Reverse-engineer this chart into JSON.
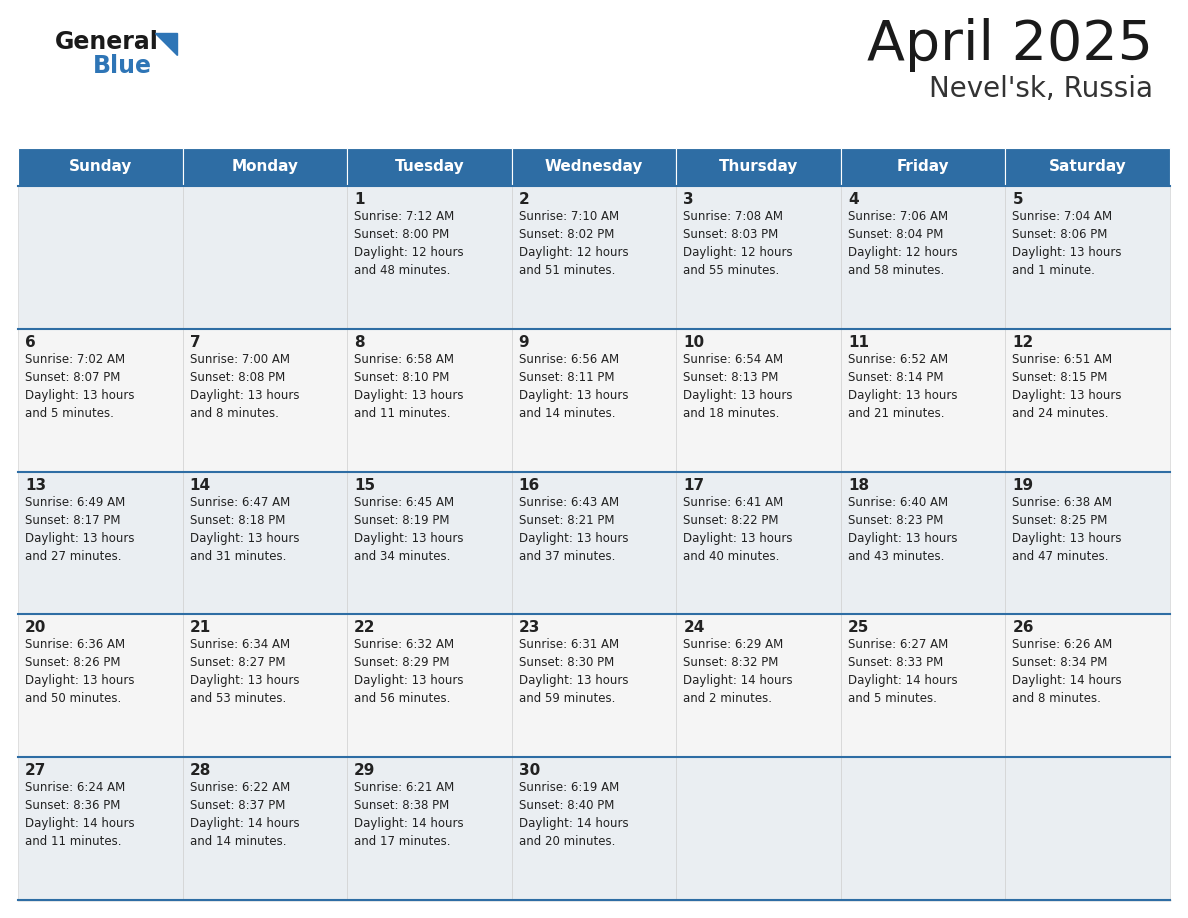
{
  "title": "April 2025",
  "subtitle": "Nevel'sk, Russia",
  "days_of_week": [
    "Sunday",
    "Monday",
    "Tuesday",
    "Wednesday",
    "Thursday",
    "Friday",
    "Saturday"
  ],
  "header_bg": "#2E6DA4",
  "header_text": "#FFFFFF",
  "cell_bg": "#F0F4F8",
  "cell_bg_alt": "#FFFFFF",
  "row_sep_color": "#2E6DA4",
  "text_color": "#222222",
  "border_color": "#AAAAAA",
  "calendar": [
    [
      {
        "day": "",
        "info": ""
      },
      {
        "day": "",
        "info": ""
      },
      {
        "day": "1",
        "info": "Sunrise: 7:12 AM\nSunset: 8:00 PM\nDaylight: 12 hours\nand 48 minutes."
      },
      {
        "day": "2",
        "info": "Sunrise: 7:10 AM\nSunset: 8:02 PM\nDaylight: 12 hours\nand 51 minutes."
      },
      {
        "day": "3",
        "info": "Sunrise: 7:08 AM\nSunset: 8:03 PM\nDaylight: 12 hours\nand 55 minutes."
      },
      {
        "day": "4",
        "info": "Sunrise: 7:06 AM\nSunset: 8:04 PM\nDaylight: 12 hours\nand 58 minutes."
      },
      {
        "day": "5",
        "info": "Sunrise: 7:04 AM\nSunset: 8:06 PM\nDaylight: 13 hours\nand 1 minute."
      }
    ],
    [
      {
        "day": "6",
        "info": "Sunrise: 7:02 AM\nSunset: 8:07 PM\nDaylight: 13 hours\nand 5 minutes."
      },
      {
        "day": "7",
        "info": "Sunrise: 7:00 AM\nSunset: 8:08 PM\nDaylight: 13 hours\nand 8 minutes."
      },
      {
        "day": "8",
        "info": "Sunrise: 6:58 AM\nSunset: 8:10 PM\nDaylight: 13 hours\nand 11 minutes."
      },
      {
        "day": "9",
        "info": "Sunrise: 6:56 AM\nSunset: 8:11 PM\nDaylight: 13 hours\nand 14 minutes."
      },
      {
        "day": "10",
        "info": "Sunrise: 6:54 AM\nSunset: 8:13 PM\nDaylight: 13 hours\nand 18 minutes."
      },
      {
        "day": "11",
        "info": "Sunrise: 6:52 AM\nSunset: 8:14 PM\nDaylight: 13 hours\nand 21 minutes."
      },
      {
        "day": "12",
        "info": "Sunrise: 6:51 AM\nSunset: 8:15 PM\nDaylight: 13 hours\nand 24 minutes."
      }
    ],
    [
      {
        "day": "13",
        "info": "Sunrise: 6:49 AM\nSunset: 8:17 PM\nDaylight: 13 hours\nand 27 minutes."
      },
      {
        "day": "14",
        "info": "Sunrise: 6:47 AM\nSunset: 8:18 PM\nDaylight: 13 hours\nand 31 minutes."
      },
      {
        "day": "15",
        "info": "Sunrise: 6:45 AM\nSunset: 8:19 PM\nDaylight: 13 hours\nand 34 minutes."
      },
      {
        "day": "16",
        "info": "Sunrise: 6:43 AM\nSunset: 8:21 PM\nDaylight: 13 hours\nand 37 minutes."
      },
      {
        "day": "17",
        "info": "Sunrise: 6:41 AM\nSunset: 8:22 PM\nDaylight: 13 hours\nand 40 minutes."
      },
      {
        "day": "18",
        "info": "Sunrise: 6:40 AM\nSunset: 8:23 PM\nDaylight: 13 hours\nand 43 minutes."
      },
      {
        "day": "19",
        "info": "Sunrise: 6:38 AM\nSunset: 8:25 PM\nDaylight: 13 hours\nand 47 minutes."
      }
    ],
    [
      {
        "day": "20",
        "info": "Sunrise: 6:36 AM\nSunset: 8:26 PM\nDaylight: 13 hours\nand 50 minutes."
      },
      {
        "day": "21",
        "info": "Sunrise: 6:34 AM\nSunset: 8:27 PM\nDaylight: 13 hours\nand 53 minutes."
      },
      {
        "day": "22",
        "info": "Sunrise: 6:32 AM\nSunset: 8:29 PM\nDaylight: 13 hours\nand 56 minutes."
      },
      {
        "day": "23",
        "info": "Sunrise: 6:31 AM\nSunset: 8:30 PM\nDaylight: 13 hours\nand 59 minutes."
      },
      {
        "day": "24",
        "info": "Sunrise: 6:29 AM\nSunset: 8:32 PM\nDaylight: 14 hours\nand 2 minutes."
      },
      {
        "day": "25",
        "info": "Sunrise: 6:27 AM\nSunset: 8:33 PM\nDaylight: 14 hours\nand 5 minutes."
      },
      {
        "day": "26",
        "info": "Sunrise: 6:26 AM\nSunset: 8:34 PM\nDaylight: 14 hours\nand 8 minutes."
      }
    ],
    [
      {
        "day": "27",
        "info": "Sunrise: 6:24 AM\nSunset: 8:36 PM\nDaylight: 14 hours\nand 11 minutes."
      },
      {
        "day": "28",
        "info": "Sunrise: 6:22 AM\nSunset: 8:37 PM\nDaylight: 14 hours\nand 14 minutes."
      },
      {
        "day": "29",
        "info": "Sunrise: 6:21 AM\nSunset: 8:38 PM\nDaylight: 14 hours\nand 17 minutes."
      },
      {
        "day": "30",
        "info": "Sunrise: 6:19 AM\nSunset: 8:40 PM\nDaylight: 14 hours\nand 20 minutes."
      },
      {
        "day": "",
        "info": ""
      },
      {
        "day": "",
        "info": ""
      },
      {
        "day": "",
        "info": ""
      }
    ]
  ]
}
